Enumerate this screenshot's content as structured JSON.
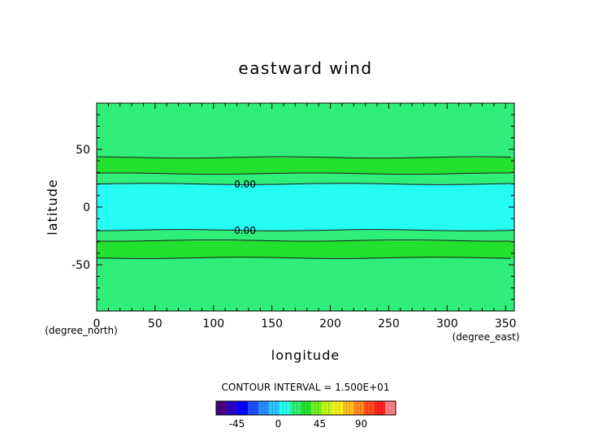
{
  "chart_data": {
    "type": "heatmap",
    "title": "eastward wind",
    "xlabel": "longitude",
    "ylabel": "latitude",
    "x_unit_label": "(degree_east)",
    "y_unit_label": "(degree_north)",
    "xlim": [
      0,
      357.5
    ],
    "ylim": [
      -90,
      90
    ],
    "x_ticks": [
      0,
      50,
      100,
      150,
      200,
      250,
      300,
      350
    ],
    "y_ticks": [
      -50,
      0,
      50
    ],
    "grid": false,
    "bands": [
      {
        "lat_from": -90,
        "lat_to": -44,
        "level_from": 0,
        "level_to": 15,
        "color": "#2fee7a"
      },
      {
        "lat_from": -44,
        "lat_to": -29,
        "level_from": 15,
        "level_to": 30,
        "color": "#22e22f"
      },
      {
        "lat_from": -29,
        "lat_to": -20,
        "level_from": 0,
        "level_to": 15,
        "color": "#2fee7a"
      },
      {
        "lat_from": -20,
        "lat_to": 20,
        "level_from": -15,
        "level_to": 0,
        "color": "#25fdf3"
      },
      {
        "lat_from": 20,
        "lat_to": 29,
        "level_from": 0,
        "level_to": 15,
        "color": "#2fee7a"
      },
      {
        "lat_from": 29,
        "lat_to": 43,
        "level_from": 15,
        "level_to": 30,
        "color": "#22e22f"
      },
      {
        "lat_from": 43,
        "lat_to": 90,
        "level_from": 0,
        "level_to": 15,
        "color": "#2fee7a"
      }
    ],
    "contours": [
      {
        "lat": -44,
        "label": null
      },
      {
        "lat": -29,
        "label": null
      },
      {
        "lat": -20,
        "label": "0.00"
      },
      {
        "lat": 20,
        "label": "0.00"
      },
      {
        "lat": 29,
        "label": null
      },
      {
        "lat": 43,
        "label": null
      }
    ],
    "contour_interval_text": "CONTOUR INTERVAL = 1.500E+01",
    "colorbar": {
      "colors": [
        "#4b0082",
        "#2a00c8",
        "#0000ff",
        "#1f4cff",
        "#2a8cff",
        "#28c8ff",
        "#25fdf3",
        "#2fee7a",
        "#22e22f",
        "#6ff21d",
        "#bdf51a",
        "#f5f01e",
        "#ffc01e",
        "#ff8a1e",
        "#ff4a1e",
        "#ff2020",
        "#ff8080"
      ],
      "tick_labels": [
        "-45",
        "0",
        "45",
        "90"
      ],
      "tick_values": [
        -45,
        0,
        45,
        90
      ],
      "range": [
        -67.5,
        127.5
      ]
    }
  }
}
